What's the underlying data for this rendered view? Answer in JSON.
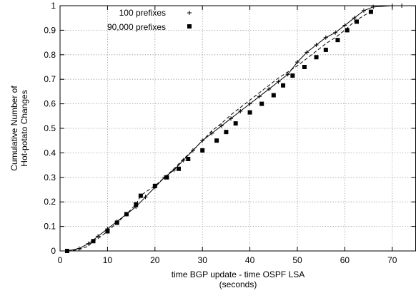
{
  "chart_data": {
    "type": "line",
    "title": "",
    "xlabel": "time BGP update - time OSPF LSA",
    "xlabel_line2": "(seconds)",
    "ylabel": "Cumulative Number of",
    "ylabel_line2": "Hot-potato Changes",
    "xlim": [
      0,
      75
    ],
    "ylim": [
      0,
      1
    ],
    "xticks": [
      0,
      10,
      20,
      30,
      40,
      50,
      60,
      70
    ],
    "yticks": [
      0,
      0.1,
      0.2,
      0.3,
      0.4,
      0.5,
      0.6,
      0.7,
      0.8,
      0.9,
      1
    ],
    "grid": true,
    "legend_position": "top-left",
    "series": [
      {
        "name": "100 prefixes",
        "line_style": "solid",
        "marker": "plus",
        "color": "#000000",
        "x": [
          1.5,
          4,
          6,
          8,
          10,
          12,
          14,
          16,
          18,
          20,
          22,
          24,
          26,
          28,
          30,
          32,
          34,
          36,
          38,
          40,
          42,
          44,
          46,
          48,
          50,
          52,
          54,
          56,
          58,
          60,
          62,
          64,
          66,
          70,
          72
        ],
        "y": [
          0,
          0.01,
          0.03,
          0.06,
          0.09,
          0.12,
          0.15,
          0.18,
          0.22,
          0.26,
          0.3,
          0.33,
          0.37,
          0.41,
          0.45,
          0.48,
          0.51,
          0.54,
          0.57,
          0.6,
          0.63,
          0.66,
          0.69,
          0.72,
          0.77,
          0.81,
          0.84,
          0.87,
          0.89,
          0.92,
          0.95,
          0.98,
          0.995,
          1.0,
          1.0
        ]
      },
      {
        "name": "90,000 prefixes",
        "line_style": "dashed",
        "marker": "square",
        "color": "#000000",
        "x": [
          1.5,
          4,
          6,
          7,
          8,
          10,
          12,
          14,
          16,
          17,
          18,
          20,
          22,
          24,
          26,
          28,
          30,
          32,
          34,
          36,
          38,
          40,
          42,
          44,
          46,
          48,
          50,
          52,
          54,
          56,
          58,
          60,
          62,
          64,
          65.5,
          66
        ],
        "y": [
          0,
          0.005,
          0.02,
          0.04,
          0.05,
          0.08,
          0.115,
          0.15,
          0.19,
          0.225,
          0.24,
          0.265,
          0.3,
          0.335,
          0.375,
          0.41,
          0.45,
          0.49,
          0.52,
          0.555,
          0.585,
          0.615,
          0.645,
          0.675,
          0.705,
          0.73,
          0.755,
          0.785,
          0.815,
          0.845,
          0.87,
          0.9,
          0.935,
          0.96,
          0.975,
          0.98
        ],
        "marker_x": [
          1.5,
          7,
          10,
          12,
          14,
          16,
          17,
          20,
          22.5,
          25,
          27,
          30,
          33,
          35,
          37,
          40,
          42.5,
          45,
          47,
          49,
          51.5,
          54,
          56,
          58.5,
          60.5,
          62.5,
          65.5
        ],
        "marker_y": [
          0,
          0.04,
          0.08,
          0.115,
          0.15,
          0.19,
          0.225,
          0.265,
          0.3,
          0.335,
          0.375,
          0.41,
          0.45,
          0.485,
          0.52,
          0.565,
          0.6,
          0.635,
          0.675,
          0.715,
          0.75,
          0.79,
          0.82,
          0.86,
          0.9,
          0.935,
          0.975
        ]
      }
    ]
  }
}
